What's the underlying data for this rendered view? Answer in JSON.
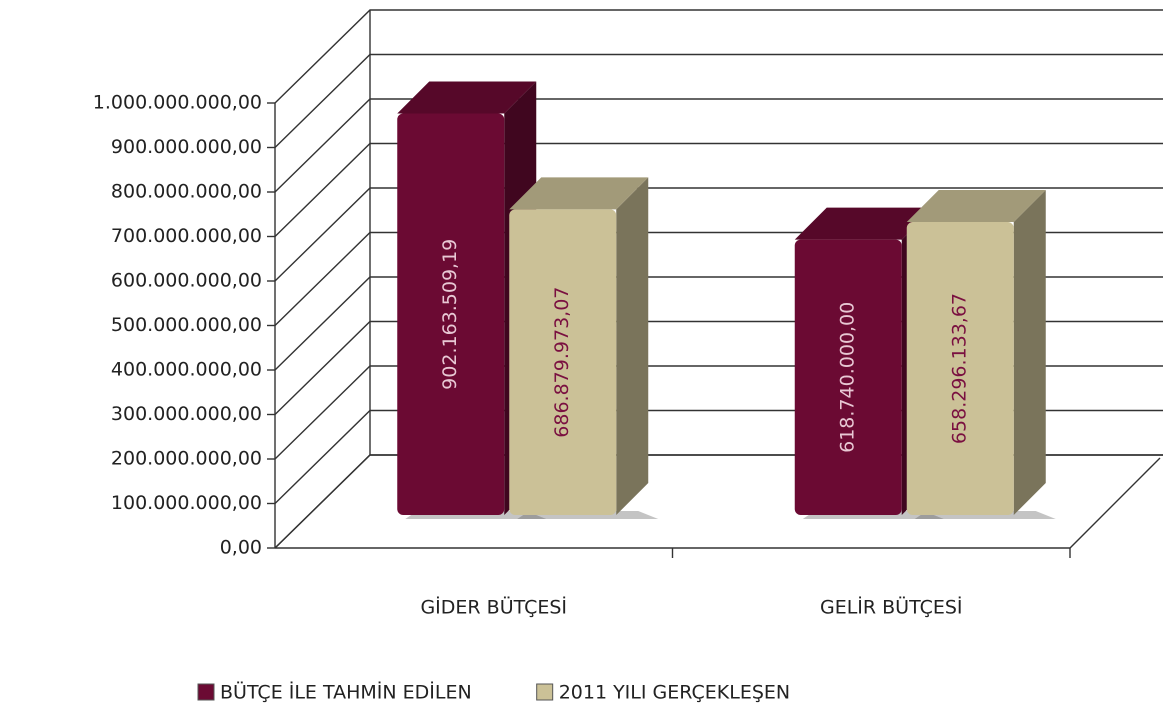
{
  "chart_data": {
    "type": "bar3d",
    "categories": [
      "GİDER BÜTÇESİ",
      "GELİR BÜTÇESİ"
    ],
    "series": [
      {
        "name": "BÜTÇE İLE TAHMİN EDİLEN",
        "color": "#6b0a33",
        "values": [
          902163509.19,
          618740000.0
        ],
        "value_labels": [
          "902.163.509,19",
          "618.740.000,00"
        ]
      },
      {
        "name": "2011 YILI GERÇEKLEŞEN",
        "color": "#cbc197",
        "values": [
          686879973.07,
          658296133.67
        ],
        "value_labels": [
          "686.879.973,07",
          "658.296.133,67"
        ]
      }
    ],
    "ylim": [
      0,
      1000000000
    ],
    "yticks": [
      {
        "value": 0,
        "label": "0,00"
      },
      {
        "value": 100000000,
        "label": "100.000.000,00"
      },
      {
        "value": 200000000,
        "label": "200.000.000,00"
      },
      {
        "value": 300000000,
        "label": "300.000.000,00"
      },
      {
        "value": 400000000,
        "label": "400.000.000,00"
      },
      {
        "value": 500000000,
        "label": "500.000.000,00"
      },
      {
        "value": 600000000,
        "label": "600.000.000,00"
      },
      {
        "value": 700000000,
        "label": "700.000.000,00"
      },
      {
        "value": 800000000,
        "label": "800.000.000,00"
      },
      {
        "value": 900000000,
        "label": "900.000.000,00"
      },
      {
        "value": 1000000000,
        "label": "1.000.000.000,00"
      }
    ],
    "grid": true,
    "legend": "bottom"
  }
}
